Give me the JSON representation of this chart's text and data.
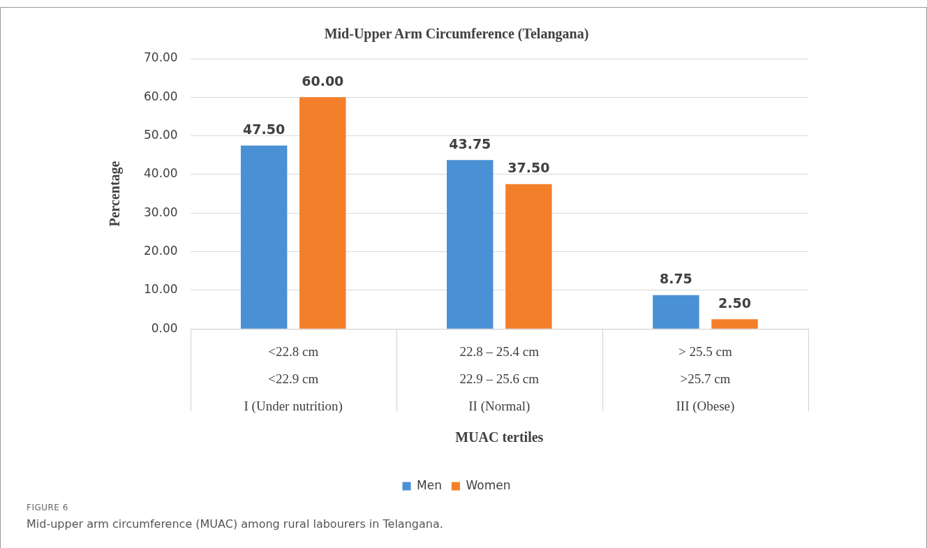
{
  "chart_data": {
    "type": "bar",
    "title": "Mid-Upper Arm Circumference (Telangana)",
    "xlabel": "MUAC tertiles",
    "ylabel": "Percentage",
    "categories": [
      "<22.8 cm\n<22.9 cm\nI (Under nutrition)",
      "22.8 – 25.4 cm\n22.9 – 25.6 cm\nII (Normal)",
      "> 25.5 cm\n>25.7 cm\nIII (Obese)"
    ],
    "series": [
      {
        "name": "Men",
        "color": "#4a90d4",
        "values": [
          47.5,
          43.75,
          8.75
        ],
        "value_labels": [
          "47.50",
          "43.75",
          "8.75"
        ]
      },
      {
        "name": "Women",
        "color": "#f47f2a",
        "values": [
          60,
          37.5,
          2.5
        ],
        "value_labels": [
          "60.00",
          "37.50",
          "2.50"
        ]
      }
    ],
    "ylim": [
      0,
      70
    ],
    "yticks": [
      {
        "value": 0,
        "label": "0.00"
      },
      {
        "value": 10,
        "label": "10.00"
      },
      {
        "value": 20,
        "label": "20.00"
      },
      {
        "value": 30,
        "label": "30.00"
      },
      {
        "value": 40,
        "label": "40.00"
      },
      {
        "value": 50,
        "label": "50.00"
      },
      {
        "value": 60,
        "label": "60.00"
      },
      {
        "value": 70,
        "label": "70.00"
      }
    ],
    "grid": "y",
    "legend": "bottom",
    "annotations": [
      "FIGURE 6",
      "Mid-upper arm circumference (MUAC) among rural labourers in Telangana."
    ]
  }
}
